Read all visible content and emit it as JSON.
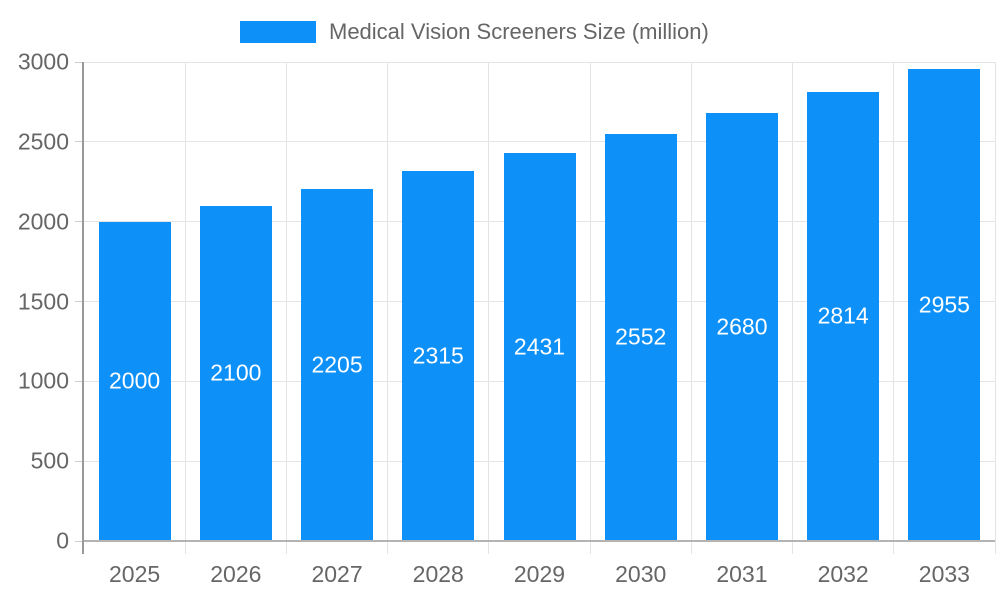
{
  "chart_data": {
    "type": "bar",
    "title": "Medical Vision Screeners Size (million)",
    "categories": [
      "2025",
      "2026",
      "2027",
      "2028",
      "2029",
      "2030",
      "2031",
      "2032",
      "2033"
    ],
    "values": [
      2000,
      2100,
      2205,
      2315,
      2431,
      2552,
      2680,
      2814,
      2955
    ],
    "xlabel": "",
    "ylabel": "",
    "ylim": [
      0,
      3000
    ],
    "yticks": [
      0,
      500,
      1000,
      1500,
      2000,
      2500,
      3000
    ],
    "grid": true,
    "legend_position": "top",
    "value_labels": "inside-center",
    "colors": {
      "bar": "#0d90f8",
      "value_label": "#ffffff",
      "axis_text": "#666666",
      "grid_line": "#e4e4e4",
      "tick": "#cccccc",
      "axis_line_y": "#999999",
      "axis_line_x": "#b3b3b3",
      "background": "#ffffff"
    }
  }
}
